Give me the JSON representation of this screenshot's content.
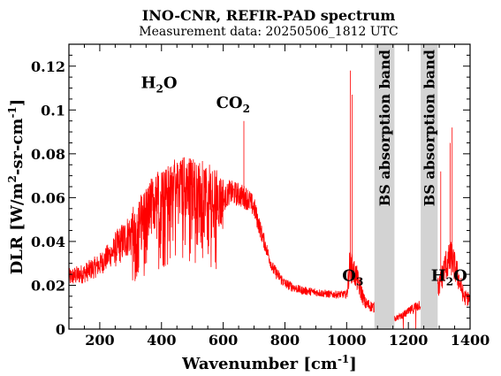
{
  "chart_data": {
    "type": "line",
    "title": "INO-CNR, REFIR-PAD spectrum",
    "subtitle": "Measurement data: 20250506_1812 UTC",
    "xlabel": {
      "base": "Wavenumber [cm",
      "sup": "-1",
      "tail": "]"
    },
    "ylabel": {
      "p1": "DLR [W/m",
      "s1": "2",
      "p2": "-sr-cm",
      "s2": "-1",
      "p3": "]"
    },
    "xlim": [
      100,
      1400
    ],
    "ylim": [
      0,
      0.13
    ],
    "xticks": [
      200,
      400,
      600,
      800,
      1000,
      1200,
      1400
    ],
    "yticks": [
      0,
      0.02,
      0.04,
      0.06,
      0.08,
      0.1,
      0.12
    ],
    "yticklabels": [
      "0",
      "0.02",
      "0.04",
      "0.06",
      "0.08",
      "0.1",
      "0.12"
    ],
    "line_color": "#ff0000",
    "band_color": "#d3d3d3",
    "bands": [
      {
        "label": "BS absorption band",
        "x0": 1090,
        "x1": 1155
      },
      {
        "label": "BS absorption band",
        "x0": 1240,
        "x1": 1295
      }
    ],
    "annotations": [
      {
        "base": "H",
        "sub": "2",
        "tail": "O",
        "x": 392,
        "y": 0.11
      },
      {
        "base": "CO",
        "sub": "2",
        "tail": "",
        "x": 632,
        "y": 0.101
      },
      {
        "base": "O",
        "sub": "3",
        "tail": "",
        "x": 1020,
        "y": 0.022
      },
      {
        "base": "H",
        "sub": "2",
        "tail": "O",
        "x": 1332,
        "y": 0.022
      }
    ],
    "series": [
      {
        "x": [
          100,
          150,
          200,
          250,
          300,
          350,
          400,
          450,
          500,
          550,
          600,
          620,
          650,
          680,
          700,
          720,
          760,
          800,
          850,
          900,
          950,
          1000,
          1010,
          1030,
          1060,
          1090,
          1160,
          1200,
          1240,
          1300,
          1320,
          1340,
          1360,
          1380,
          1400
        ],
        "y": [
          0.024,
          0.026,
          0.03,
          0.037,
          0.045,
          0.055,
          0.062,
          0.066,
          0.066,
          0.063,
          0.059,
          0.063,
          0.062,
          0.06,
          0.056,
          0.046,
          0.028,
          0.021,
          0.018,
          0.017,
          0.016,
          0.016,
          0.03,
          0.025,
          0.012,
          0.01,
          0.005,
          0.008,
          0.012,
          0.02,
          0.03,
          0.033,
          0.025,
          0.015,
          0.014
        ]
      }
    ]
  }
}
